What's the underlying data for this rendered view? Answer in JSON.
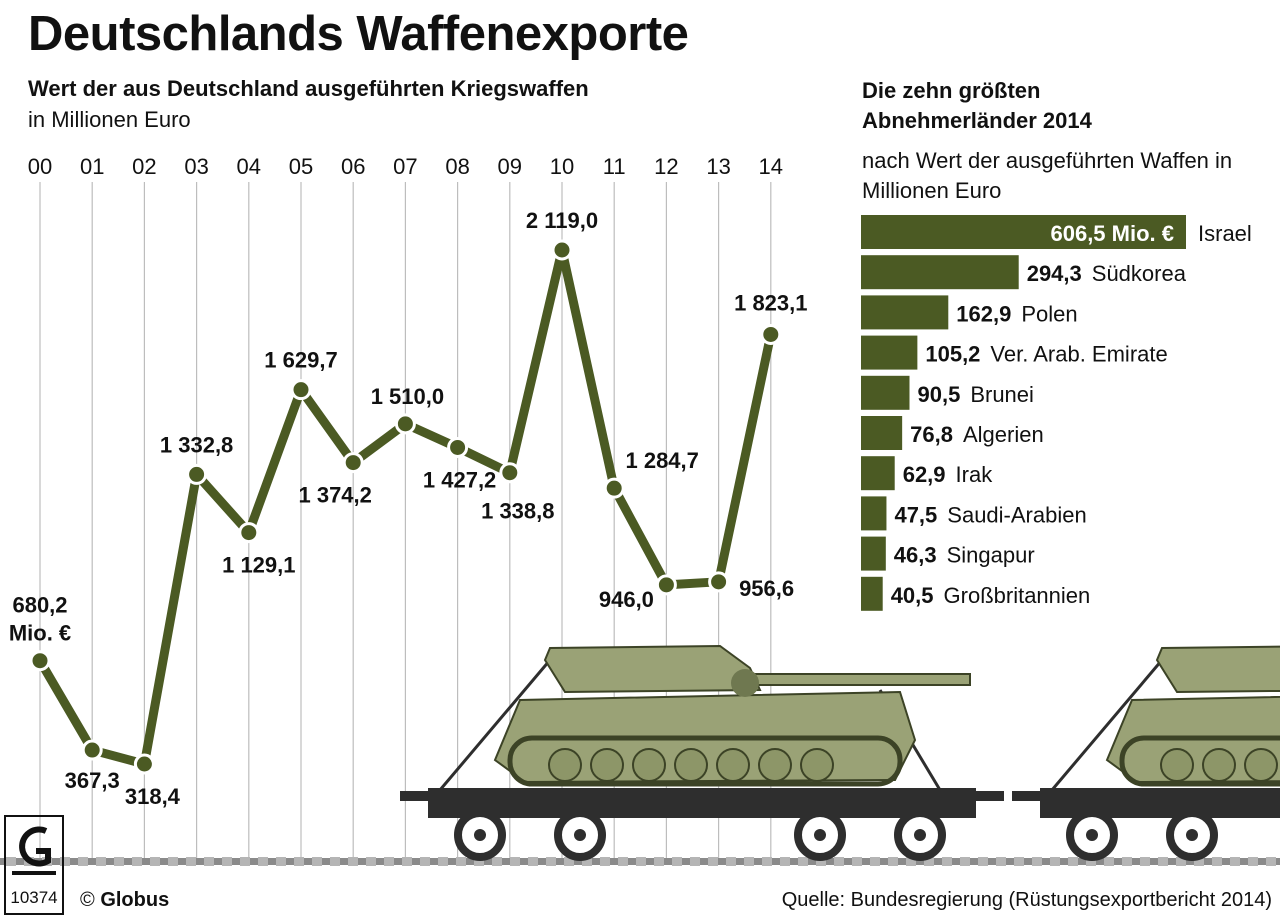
{
  "header": {
    "title": "Deutschlands Waffenexporte",
    "subtitle": "Wert der aus Deutschland ausgeführten Kriegswaffen",
    "unit": "in Millionen Euro"
  },
  "side_panel": {
    "title": "Die zehn größten Abnehmerländer 2014",
    "subtitle": "nach Wert der ausgeführten Waffen in Millionen Euro"
  },
  "footer": {
    "copyright_symbol": "©",
    "copyright_name": "Globus",
    "logo_number": "10374",
    "source": "Quelle: Bundesregierung (Rüstungsexportbericht 2014)"
  },
  "colors": {
    "series": "#4b5a23",
    "gridline": "#bdbdbd",
    "track": "#8a8a8a",
    "tank_light": "#9aa276",
    "tank_dark": "#6f7850",
    "wagon": "#2e2e2e"
  },
  "chart_data": [
    {
      "type": "line",
      "title": "Wert der aus Deutschland ausgeführten Kriegswaffen",
      "ylabel": "in Millionen Euro",
      "x": [
        "00",
        "01",
        "02",
        "03",
        "04",
        "05",
        "06",
        "07",
        "08",
        "09",
        "10",
        "11",
        "12",
        "13",
        "14"
      ],
      "values": [
        680.2,
        367.3,
        318.4,
        1332.8,
        1129.1,
        1629.7,
        1374.2,
        1510.0,
        1427.2,
        1338.8,
        2119.0,
        1284.7,
        946.0,
        956.6,
        1823.1
      ],
      "value_labels": [
        "680,2",
        "367,3",
        "318,4",
        "1 332,8",
        "1 129,1",
        "1 629,7",
        "1 374,2",
        "1 510,0",
        "1 427,2",
        "1 338,8",
        "2 119,0",
        "1 284,7",
        "946,0",
        "956,6",
        "1 823,1"
      ],
      "first_label_unit": "Mio. €",
      "grid": true
    },
    {
      "type": "bar",
      "orientation": "horizontal",
      "title": "Die zehn größten Abnehmerländer 2014",
      "categories": [
        "Israel",
        "Südkorea",
        "Polen",
        "Ver. Arab. Emirate",
        "Brunei",
        "Algerien",
        "Irak",
        "Saudi-Arabien",
        "Singapur",
        "Großbritannien"
      ],
      "values": [
        606.5,
        294.3,
        162.9,
        105.2,
        90.5,
        76.8,
        62.9,
        47.5,
        46.3,
        40.5
      ],
      "value_labels": [
        "606,5 Mio. €",
        "294,3",
        "162,9",
        "105,2",
        "90,5",
        "76,8",
        "62,9",
        "47,5",
        "46,3",
        "40,5"
      ]
    }
  ]
}
